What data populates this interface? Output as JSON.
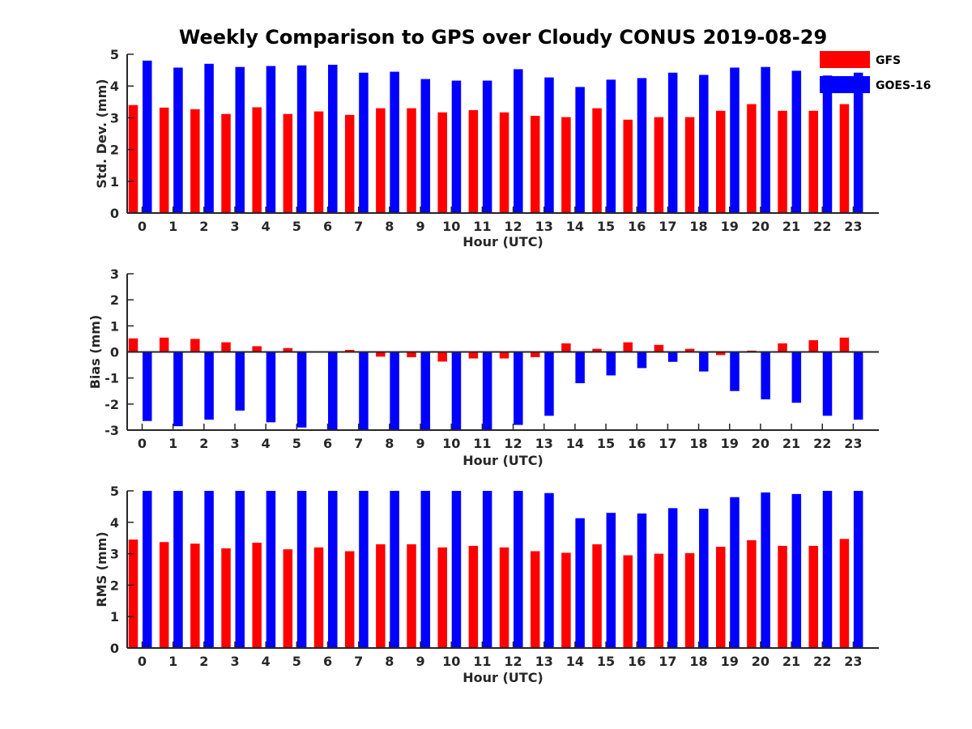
{
  "figure_title": "Weekly Comparison to GPS over Cloudy CONUS 2019-08-29",
  "colors": {
    "GFS": "#ff0000",
    "GOES-16": "#0000ff",
    "axis": "#262626"
  },
  "chart_data": [
    {
      "type": "bar",
      "xlabel": "Hour (UTC)",
      "ylabel": "Std. Dev. (mm)",
      "ylim": [
        0,
        5
      ],
      "yticks": [
        0,
        1,
        2,
        3,
        4,
        5
      ],
      "categories": [
        "0",
        "1",
        "2",
        "3",
        "4",
        "5",
        "6",
        "7",
        "8",
        "9",
        "10",
        "11",
        "12",
        "13",
        "14",
        "15",
        "16",
        "17",
        "18",
        "19",
        "20",
        "21",
        "22",
        "23"
      ],
      "legend": {
        "placement": "top-right",
        "entries": [
          "GFS",
          "GOES-16"
        ]
      },
      "series": [
        {
          "name": "GFS",
          "values": [
            3.4,
            3.32,
            3.27,
            3.12,
            3.33,
            3.12,
            3.2,
            3.09,
            3.3,
            3.3,
            3.17,
            3.24,
            3.17,
            3.06,
            3.02,
            3.3,
            2.94,
            3.02,
            3.02,
            3.22,
            3.43,
            3.22,
            3.22,
            3.43
          ]
        },
        {
          "name": "GOES-16",
          "values": [
            4.8,
            4.58,
            4.7,
            4.6,
            4.63,
            4.65,
            4.67,
            4.42,
            4.45,
            4.22,
            4.17,
            4.17,
            4.53,
            4.27,
            3.97,
            4.2,
            4.25,
            4.42,
            4.35,
            4.58,
            4.6,
            4.48,
            4.33,
            4.42
          ]
        }
      ]
    },
    {
      "type": "bar",
      "xlabel": "Hour (UTC)",
      "ylabel": "Bias (mm)",
      "ylim": [
        -3,
        3
      ],
      "yticks": [
        -3,
        -2,
        -1,
        0,
        1,
        2,
        3
      ],
      "categories": [
        "0",
        "1",
        "2",
        "3",
        "4",
        "5",
        "6",
        "7",
        "8",
        "9",
        "10",
        "11",
        "12",
        "13",
        "14",
        "15",
        "16",
        "17",
        "18",
        "19",
        "20",
        "21",
        "22",
        "23"
      ],
      "series": [
        {
          "name": "GFS",
          "values": [
            0.52,
            0.55,
            0.5,
            0.37,
            0.22,
            0.15,
            0.0,
            0.08,
            -0.18,
            -0.2,
            -0.37,
            -0.25,
            -0.25,
            -0.2,
            0.33,
            0.12,
            0.37,
            0.27,
            0.12,
            -0.12,
            0.05,
            0.33,
            0.45,
            0.55
          ]
        },
        {
          "name": "GOES-16",
          "values": [
            -2.65,
            -2.85,
            -2.6,
            -2.25,
            -2.7,
            -2.9,
            -3.0,
            -3.0,
            -3.0,
            -3.0,
            -3.0,
            -3.0,
            -2.8,
            -2.45,
            -1.2,
            -0.9,
            -0.62,
            -0.38,
            -0.75,
            -1.5,
            -1.82,
            -1.95,
            -2.45,
            -2.6
          ]
        }
      ]
    },
    {
      "type": "bar",
      "xlabel": "Hour (UTC)",
      "ylabel": "RMS (mm)",
      "ylim": [
        0,
        5
      ],
      "yticks": [
        0,
        1,
        2,
        3,
        4,
        5
      ],
      "categories": [
        "0",
        "1",
        "2",
        "3",
        "4",
        "5",
        "6",
        "7",
        "8",
        "9",
        "10",
        "11",
        "12",
        "13",
        "14",
        "15",
        "16",
        "17",
        "18",
        "19",
        "20",
        "21",
        "22",
        "23"
      ],
      "series": [
        {
          "name": "GFS",
          "values": [
            3.45,
            3.37,
            3.32,
            3.17,
            3.35,
            3.14,
            3.2,
            3.08,
            3.3,
            3.3,
            3.2,
            3.25,
            3.2,
            3.08,
            3.03,
            3.3,
            2.95,
            3.0,
            3.02,
            3.22,
            3.43,
            3.25,
            3.25,
            3.47
          ]
        },
        {
          "name": "GOES-16",
          "values": [
            5.0,
            5.0,
            5.0,
            5.0,
            5.0,
            5.0,
            5.0,
            5.0,
            5.0,
            5.0,
            5.0,
            5.0,
            5.0,
            4.93,
            4.13,
            4.3,
            4.28,
            4.45,
            4.43,
            4.8,
            4.95,
            4.9,
            5.0,
            5.0
          ]
        }
      ]
    }
  ]
}
